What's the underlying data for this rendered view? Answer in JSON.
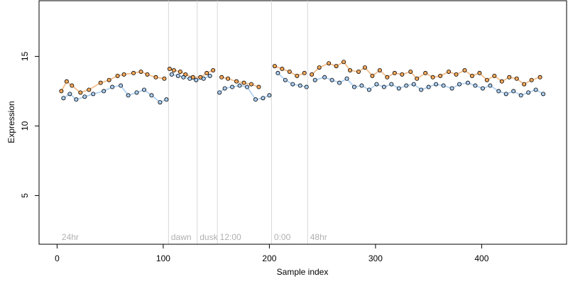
{
  "chart_data": {
    "type": "scatter",
    "title": "",
    "xlabel": "Sample index",
    "ylabel": "Expression",
    "xlim": [
      -17,
      480
    ],
    "ylim": [
      1.5,
      19
    ],
    "x_ticks": [
      0,
      100,
      200,
      300,
      400
    ],
    "y_ticks": [
      5,
      10,
      15
    ],
    "grid": false,
    "colors": {
      "orange": "#f5a85a",
      "blue": "#a9cdf2",
      "line_orange": "#f5b880",
      "line_blue": "#a9cdf2",
      "vline": "#d8d8d8",
      "annotation": "#b0b0b0"
    },
    "annotations": [
      {
        "x": 3,
        "label": "24hr"
      },
      {
        "x": 106,
        "label": "dawn"
      },
      {
        "x": 133,
        "label": "dusk"
      },
      {
        "x": 152,
        "label": "12:00"
      },
      {
        "x": 203,
        "label": "0:00"
      },
      {
        "x": 237,
        "label": "48hr"
      }
    ],
    "vlines": [
      105,
      132,
      151,
      202,
      236
    ],
    "segments": [
      {
        "start": 1,
        "end": 104,
        "base": 12.9
      },
      {
        "start": 105,
        "end": 150,
        "base": 13.7
      },
      {
        "start": 151,
        "end": 201,
        "base": 12.9
      },
      {
        "start": 202,
        "end": 235,
        "base": 13.8
      },
      {
        "start": 236,
        "end": 462,
        "base": 13.5
      }
    ],
    "series": [
      {
        "color_key": "orange",
        "values": [
          [
            4,
            12.5
          ],
          [
            9,
            13.2
          ],
          [
            14,
            12.9
          ],
          [
            22,
            12.4
          ],
          [
            30,
            12.6
          ],
          [
            41,
            13.1
          ],
          [
            49,
            13.3
          ],
          [
            57,
            13.6
          ],
          [
            63,
            13.7
          ],
          [
            72,
            13.8
          ],
          [
            79,
            13.9
          ],
          [
            85,
            13.7
          ],
          [
            93,
            13.5
          ],
          [
            101,
            13.4
          ],
          [
            106,
            14.1
          ],
          [
            110,
            14.0
          ],
          [
            116,
            13.9
          ],
          [
            121,
            13.7
          ],
          [
            128,
            13.5
          ],
          [
            135,
            13.5
          ],
          [
            141,
            13.8
          ],
          [
            147,
            14.0
          ],
          [
            155,
            13.5
          ],
          [
            161,
            13.4
          ],
          [
            169,
            13.2
          ],
          [
            176,
            13.1
          ],
          [
            183,
            13.0
          ],
          [
            190,
            12.8
          ],
          [
            205,
            14.3
          ],
          [
            212,
            14.1
          ],
          [
            219,
            13.9
          ],
          [
            226,
            13.6
          ],
          [
            233,
            13.8
          ],
          [
            240,
            13.7
          ],
          [
            247,
            14.2
          ],
          [
            256,
            14.5
          ],
          [
            263,
            14.3
          ],
          [
            270,
            14.6
          ],
          [
            276,
            14.0
          ],
          [
            284,
            13.9
          ],
          [
            290,
            14.2
          ],
          [
            297,
            13.6
          ],
          [
            304,
            14.0
          ],
          [
            311,
            13.5
          ],
          [
            318,
            13.8
          ],
          [
            325,
            13.7
          ],
          [
            333,
            13.9
          ],
          [
            339,
            13.4
          ],
          [
            347,
            13.8
          ],
          [
            354,
            13.5
          ],
          [
            361,
            13.6
          ],
          [
            369,
            13.9
          ],
          [
            376,
            13.7
          ],
          [
            384,
            14.0
          ],
          [
            391,
            13.6
          ],
          [
            398,
            13.8
          ],
          [
            405,
            13.3
          ],
          [
            412,
            13.6
          ],
          [
            419,
            13.2
          ],
          [
            426,
            13.5
          ],
          [
            433,
            13.4
          ],
          [
            440,
            13.0
          ],
          [
            447,
            13.3
          ],
          [
            455,
            13.5
          ]
        ]
      },
      {
        "color_key": "blue",
        "values": [
          [
            6,
            12.0
          ],
          [
            12,
            12.3
          ],
          [
            18,
            11.9
          ],
          [
            26,
            12.1
          ],
          [
            34,
            12.3
          ],
          [
            44,
            12.5
          ],
          [
            52,
            12.8
          ],
          [
            60,
            12.9
          ],
          [
            67,
            12.2
          ],
          [
            75,
            12.4
          ],
          [
            82,
            12.6
          ],
          [
            89,
            12.2
          ],
          [
            97,
            11.7
          ],
          [
            103,
            11.9
          ],
          [
            108,
            13.7
          ],
          [
            114,
            13.6
          ],
          [
            119,
            13.5
          ],
          [
            125,
            13.4
          ],
          [
            131,
            13.3
          ],
          [
            138,
            13.4
          ],
          [
            144,
            13.6
          ],
          [
            153,
            12.4
          ],
          [
            158,
            12.7
          ],
          [
            165,
            12.8
          ],
          [
            172,
            12.9
          ],
          [
            179,
            12.8
          ],
          [
            187,
            11.9
          ],
          [
            194,
            12.0
          ],
          [
            200,
            12.2
          ],
          [
            208,
            13.8
          ],
          [
            215,
            13.3
          ],
          [
            222,
            13.0
          ],
          [
            229,
            12.9
          ],
          [
            235,
            12.8
          ],
          [
            243,
            13.3
          ],
          [
            252,
            13.5
          ],
          [
            259,
            13.3
          ],
          [
            266,
            13.1
          ],
          [
            273,
            13.4
          ],
          [
            280,
            12.8
          ],
          [
            287,
            12.9
          ],
          [
            294,
            12.6
          ],
          [
            301,
            13.0
          ],
          [
            308,
            12.8
          ],
          [
            315,
            13.0
          ],
          [
            322,
            12.7
          ],
          [
            329,
            12.9
          ],
          [
            336,
            13.0
          ],
          [
            343,
            12.6
          ],
          [
            350,
            12.8
          ],
          [
            357,
            13.0
          ],
          [
            364,
            12.9
          ],
          [
            372,
            12.7
          ],
          [
            379,
            13.0
          ],
          [
            387,
            13.1
          ],
          [
            394,
            12.9
          ],
          [
            401,
            12.7
          ],
          [
            408,
            12.9
          ],
          [
            416,
            12.5
          ],
          [
            423,
            12.3
          ],
          [
            430,
            12.5
          ],
          [
            437,
            12.2
          ],
          [
            444,
            12.4
          ],
          [
            451,
            12.6
          ],
          [
            458,
            12.3
          ]
        ]
      }
    ]
  }
}
